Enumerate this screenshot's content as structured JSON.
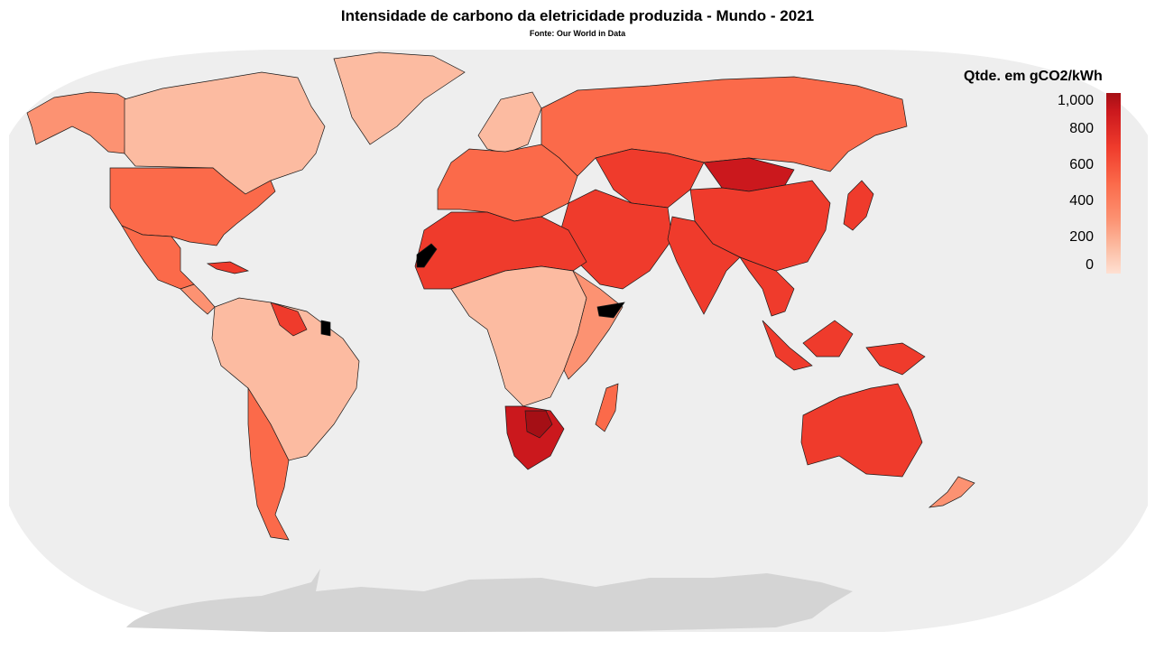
{
  "title": "Intensidade de carbono da eletricidade produzida - Mundo - 2021",
  "subtitle": "Fonte: Our World in Data",
  "legend": {
    "title": "Qtde. em gCO2/kWh",
    "ticks": [
      "1,000",
      "800",
      "600",
      "400",
      "200",
      "0"
    ],
    "tick_values": [
      1000,
      800,
      600,
      400,
      200,
      0
    ]
  },
  "colors": {
    "ocean": "#eeeeee",
    "antarctica": "#d4d4d4",
    "no_data": "#000000",
    "scale": [
      "#fee0d2",
      "#fcbba1",
      "#fc9272",
      "#fb6a4a",
      "#ef3b2c",
      "#cb181d",
      "#a50f15"
    ]
  },
  "regions": [
    {
      "name": "canada",
      "level": 1
    },
    {
      "name": "alaska",
      "level": 2
    },
    {
      "name": "usa",
      "level": 3
    },
    {
      "name": "greenland",
      "level": 1
    },
    {
      "name": "mexico",
      "level": 3
    },
    {
      "name": "central-america",
      "level": 2
    },
    {
      "name": "cuba",
      "level": 4
    },
    {
      "name": "south-america",
      "level": 1
    },
    {
      "name": "argentina",
      "level": 3
    },
    {
      "name": "venezuela",
      "level": 4
    },
    {
      "name": "europe",
      "level": 3
    },
    {
      "name": "scandinavia",
      "level": 1
    },
    {
      "name": "russia",
      "level": 3
    },
    {
      "name": "kazakhstan",
      "level": 4
    },
    {
      "name": "mongolia",
      "level": 5
    },
    {
      "name": "china",
      "level": 4
    },
    {
      "name": "india",
      "level": 4
    },
    {
      "name": "middle-east",
      "level": 4
    },
    {
      "name": "north-africa",
      "level": 4
    },
    {
      "name": "central-africa",
      "level": 1
    },
    {
      "name": "east-africa",
      "level": 2
    },
    {
      "name": "south-africa",
      "level": 5
    },
    {
      "name": "botswana",
      "level": 6
    },
    {
      "name": "madagascar",
      "level": 3
    },
    {
      "name": "southeast-asia",
      "level": 4
    },
    {
      "name": "indonesia",
      "level": 4
    },
    {
      "name": "japan",
      "level": 4
    },
    {
      "name": "australia",
      "level": 4
    },
    {
      "name": "new-zealand",
      "level": 2
    },
    {
      "name": "western-sahara",
      "level": "no_data"
    },
    {
      "name": "french-guiana",
      "level": "no_data"
    },
    {
      "name": "somalia-north",
      "level": "no_data"
    }
  ]
}
